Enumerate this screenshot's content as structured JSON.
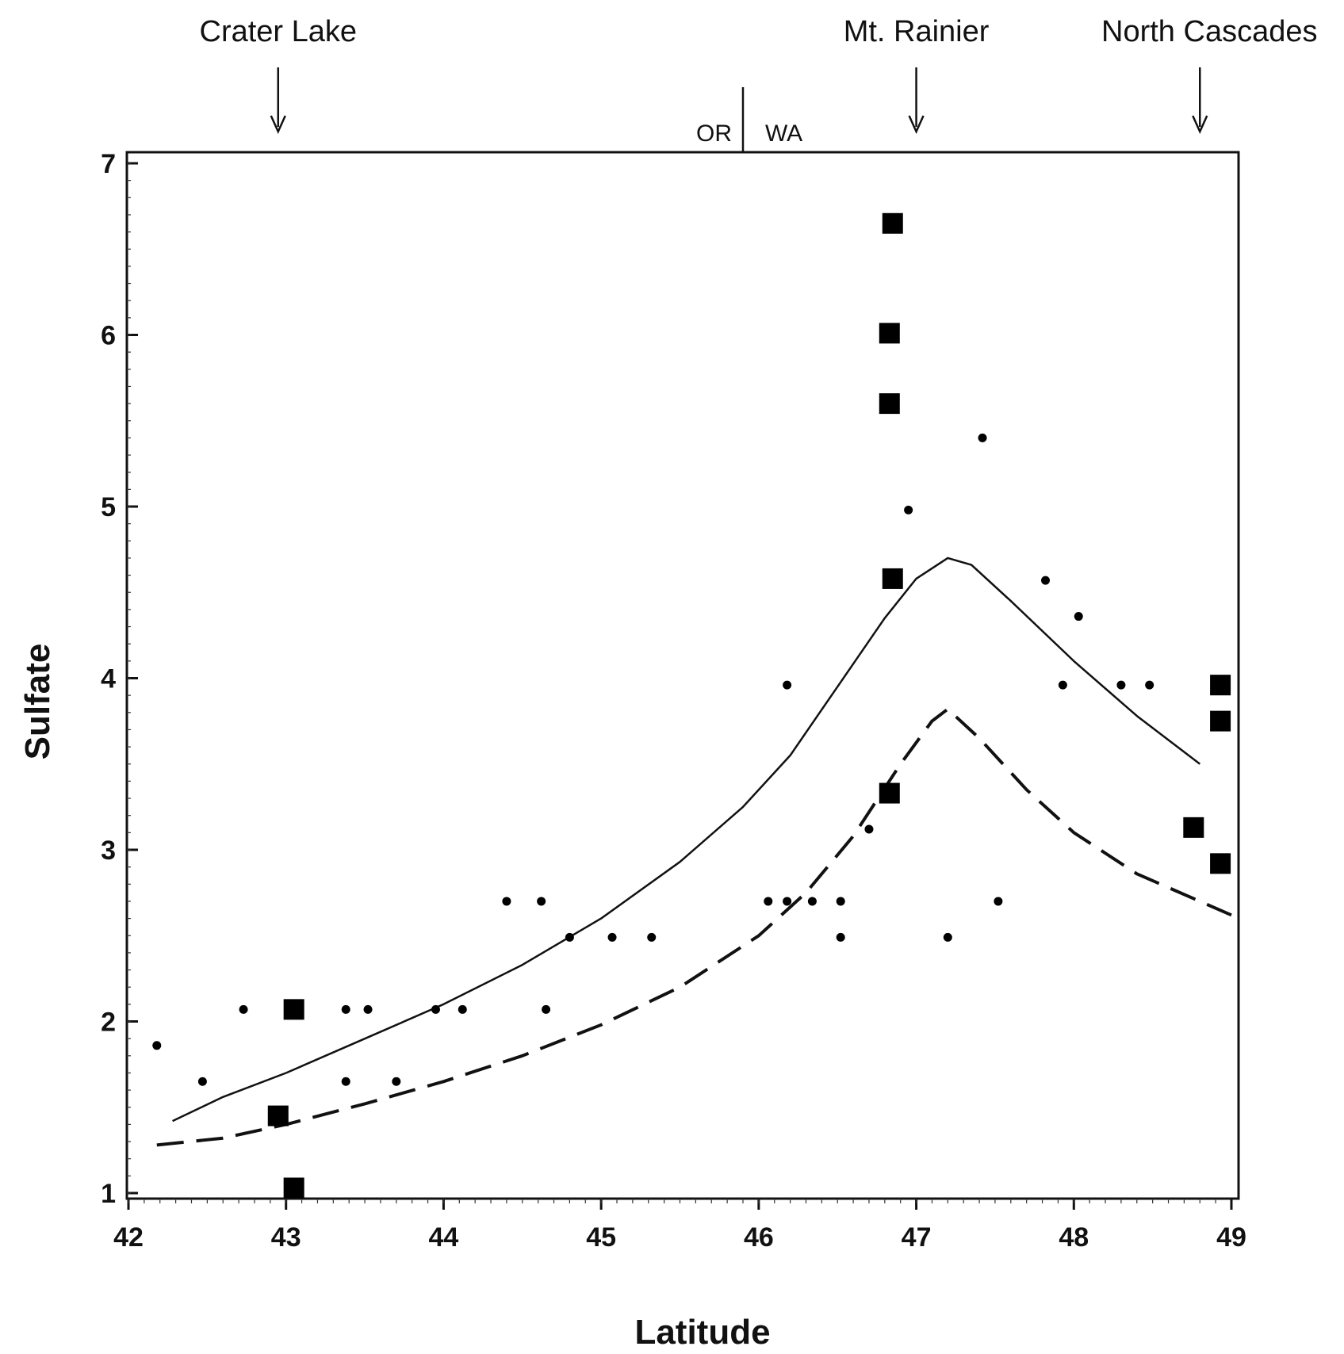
{
  "chart_data": {
    "type": "scatter",
    "xlabel": "Latitude",
    "ylabel": "Sulfate",
    "xlim": [
      42,
      49
    ],
    "ylim": [
      1,
      7
    ],
    "x_ticks": [
      42,
      43,
      44,
      45,
      46,
      47,
      48,
      49
    ],
    "y_ticks": [
      1,
      2,
      3,
      4,
      5,
      6,
      7
    ],
    "grid": false,
    "site_annotations": [
      {
        "label": "Crater Lake",
        "x": 42.95
      },
      {
        "label": "Mt. Rainier",
        "x": 47.0
      },
      {
        "label": "North Cascades",
        "x": 48.8
      }
    ],
    "state_boundary": {
      "x": 45.9,
      "left_label": "OR",
      "right_label": "WA"
    },
    "series": [
      {
        "marker": "square",
        "points": [
          {
            "x": 42.95,
            "y": 1.45
          },
          {
            "x": 43.05,
            "y": 2.07
          },
          {
            "x": 43.05,
            "y": 1.03
          },
          {
            "x": 46.85,
            "y": 6.65
          },
          {
            "x": 46.83,
            "y": 6.01
          },
          {
            "x": 46.83,
            "y": 5.6
          },
          {
            "x": 46.85,
            "y": 4.58
          },
          {
            "x": 46.83,
            "y": 3.33
          },
          {
            "x": 48.93,
            "y": 3.96
          },
          {
            "x": 48.93,
            "y": 3.75
          },
          {
            "x": 48.76,
            "y": 3.13
          },
          {
            "x": 48.93,
            "y": 2.92
          }
        ]
      },
      {
        "marker": "dot",
        "points": [
          {
            "x": 42.18,
            "y": 1.86
          },
          {
            "x": 42.47,
            "y": 1.65
          },
          {
            "x": 42.73,
            "y": 2.07
          },
          {
            "x": 43.38,
            "y": 2.07
          },
          {
            "x": 43.52,
            "y": 2.07
          },
          {
            "x": 43.38,
            "y": 1.65
          },
          {
            "x": 43.7,
            "y": 1.65
          },
          {
            "x": 43.95,
            "y": 2.07
          },
          {
            "x": 44.12,
            "y": 2.07
          },
          {
            "x": 44.65,
            "y": 2.07
          },
          {
            "x": 44.4,
            "y": 2.7
          },
          {
            "x": 44.62,
            "y": 2.7
          },
          {
            "x": 44.8,
            "y": 2.49
          },
          {
            "x": 45.07,
            "y": 2.49
          },
          {
            "x": 45.32,
            "y": 2.49
          },
          {
            "x": 46.06,
            "y": 2.7
          },
          {
            "x": 46.18,
            "y": 2.7
          },
          {
            "x": 46.34,
            "y": 2.7
          },
          {
            "x": 46.52,
            "y": 2.7
          },
          {
            "x": 46.52,
            "y": 2.49
          },
          {
            "x": 46.18,
            "y": 3.96
          },
          {
            "x": 46.7,
            "y": 3.12
          },
          {
            "x": 46.95,
            "y": 4.98
          },
          {
            "x": 47.2,
            "y": 2.49
          },
          {
            "x": 47.42,
            "y": 5.4
          },
          {
            "x": 47.52,
            "y": 2.7
          },
          {
            "x": 47.82,
            "y": 4.57
          },
          {
            "x": 48.03,
            "y": 4.36
          },
          {
            "x": 47.93,
            "y": 3.96
          },
          {
            "x": 48.3,
            "y": 3.96
          },
          {
            "x": 48.48,
            "y": 3.96
          }
        ]
      },
      {
        "marker": "line",
        "style": "solid",
        "points": [
          {
            "x": 42.28,
            "y": 1.42
          },
          {
            "x": 42.6,
            "y": 1.56
          },
          {
            "x": 43.0,
            "y": 1.7
          },
          {
            "x": 43.5,
            "y": 1.9
          },
          {
            "x": 44.0,
            "y": 2.1
          },
          {
            "x": 44.5,
            "y": 2.33
          },
          {
            "x": 45.0,
            "y": 2.6
          },
          {
            "x": 45.5,
            "y": 2.93
          },
          {
            "x": 45.9,
            "y": 3.25
          },
          {
            "x": 46.2,
            "y": 3.55
          },
          {
            "x": 46.5,
            "y": 3.95
          },
          {
            "x": 46.8,
            "y": 4.35
          },
          {
            "x": 47.0,
            "y": 4.58
          },
          {
            "x": 47.2,
            "y": 4.7
          },
          {
            "x": 47.35,
            "y": 4.66
          },
          {
            "x": 47.6,
            "y": 4.45
          },
          {
            "x": 48.0,
            "y": 4.1
          },
          {
            "x": 48.4,
            "y": 3.78
          },
          {
            "x": 48.8,
            "y": 3.5
          }
        ]
      },
      {
        "marker": "line",
        "style": "dashed",
        "points": [
          {
            "x": 42.18,
            "y": 1.28
          },
          {
            "x": 42.6,
            "y": 1.32
          },
          {
            "x": 43.0,
            "y": 1.4
          },
          {
            "x": 43.5,
            "y": 1.52
          },
          {
            "x": 44.0,
            "y": 1.65
          },
          {
            "x": 44.5,
            "y": 1.8
          },
          {
            "x": 45.0,
            "y": 1.98
          },
          {
            "x": 45.5,
            "y": 2.2
          },
          {
            "x": 46.0,
            "y": 2.5
          },
          {
            "x": 46.3,
            "y": 2.75
          },
          {
            "x": 46.6,
            "y": 3.08
          },
          {
            "x": 46.9,
            "y": 3.5
          },
          {
            "x": 47.1,
            "y": 3.75
          },
          {
            "x": 47.2,
            "y": 3.82
          },
          {
            "x": 47.4,
            "y": 3.65
          },
          {
            "x": 47.7,
            "y": 3.35
          },
          {
            "x": 48.0,
            "y": 3.1
          },
          {
            "x": 48.4,
            "y": 2.86
          },
          {
            "x": 48.8,
            "y": 2.7
          },
          {
            "x": 49.0,
            "y": 2.62
          }
        ]
      }
    ]
  }
}
